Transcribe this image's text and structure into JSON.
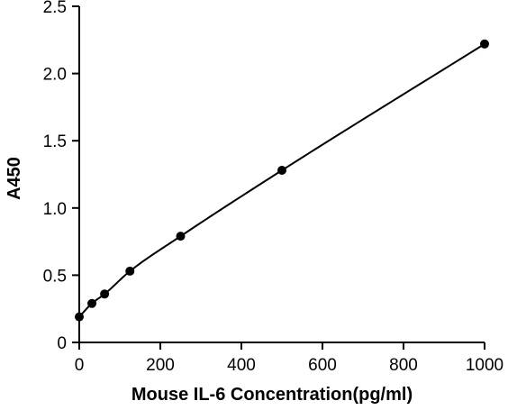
{
  "chart_data": {
    "type": "line",
    "title": "",
    "xlabel": "Mouse IL-6 Concentration(pg/ml)",
    "ylabel": "A450",
    "xlim": [
      0,
      1000
    ],
    "ylim": [
      0,
      2.5
    ],
    "x_ticks": [
      0,
      200,
      400,
      600,
      800,
      1000
    ],
    "y_ticks": [
      0,
      0.5,
      1.0,
      1.5,
      2.0,
      2.5
    ],
    "x_tick_labels": [
      "0",
      "200",
      "400",
      "600",
      "800",
      "1000"
    ],
    "y_tick_labels": [
      "0",
      "0.5",
      "1.0",
      "1.5",
      "2.0",
      "2.5"
    ],
    "grid": false,
    "legend": "none",
    "line_color": "#000000",
    "marker": "filled-circle",
    "series": [
      {
        "x": [
          0,
          31.25,
          62.5,
          125,
          250,
          500,
          1000
        ],
        "y": [
          0.19,
          0.29,
          0.36,
          0.53,
          0.79,
          1.28,
          2.22
        ]
      }
    ]
  }
}
